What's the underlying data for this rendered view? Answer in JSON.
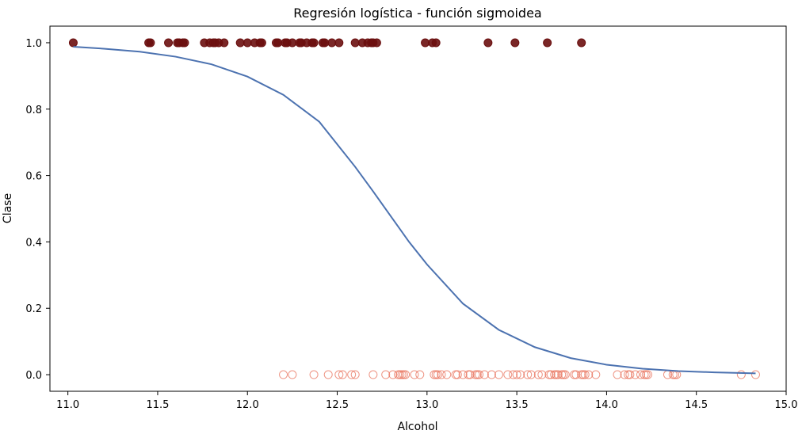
{
  "chart_data": {
    "type": "scatter",
    "title": "Regresión logística - función sigmoidea",
    "xlabel": "Alcohol",
    "ylabel": "Clase",
    "xlim": [
      10.9,
      15.0
    ],
    "ylim": [
      -0.05,
      1.05
    ],
    "xticks": [
      11.0,
      11.5,
      12.0,
      12.5,
      13.0,
      13.5,
      14.0,
      14.5,
      15.0
    ],
    "xtick_labels": [
      "11.0",
      "11.5",
      "12.0",
      "12.5",
      "13.0",
      "13.5",
      "14.0",
      "14.5",
      "15.0"
    ],
    "yticks": [
      0.0,
      0.2,
      0.4,
      0.6,
      0.8,
      1.0
    ],
    "ytick_labels": [
      "0.0",
      "0.2",
      "0.4",
      "0.6",
      "0.8",
      "1.0"
    ],
    "grid": false,
    "series": [
      {
        "kind": "scatter-filled",
        "color": "#6b0f0f",
        "y": 1,
        "x": [
          11.03,
          11.45,
          11.46,
          11.56,
          11.61,
          11.62,
          11.64,
          11.65,
          11.76,
          11.79,
          11.81,
          11.82,
          11.84,
          11.87,
          11.96,
          12.0,
          12.04,
          12.07,
          12.08,
          12.16,
          12.17,
          12.21,
          12.22,
          12.25,
          12.29,
          12.3,
          12.33,
          12.36,
          12.37,
          12.42,
          12.43,
          12.47,
          12.51,
          12.6,
          12.64,
          12.67,
          12.69,
          12.7,
          12.72,
          12.99,
          13.03,
          13.05,
          13.34,
          13.49,
          13.67,
          13.86
        ]
      },
      {
        "kind": "scatter-hollow",
        "color": "#e8705a",
        "y": 0,
        "x": [
          12.2,
          12.25,
          12.37,
          12.45,
          12.51,
          12.53,
          12.58,
          12.6,
          12.7,
          12.77,
          12.81,
          12.84,
          12.85,
          12.86,
          12.87,
          12.88,
          12.93,
          12.96,
          13.04,
          13.05,
          13.06,
          13.08,
          13.11,
          13.16,
          13.17,
          13.2,
          13.23,
          13.24,
          13.27,
          13.28,
          13.29,
          13.32,
          13.36,
          13.4,
          13.45,
          13.48,
          13.5,
          13.52,
          13.56,
          13.58,
          13.62,
          13.64,
          13.68,
          13.69,
          13.71,
          13.72,
          13.73,
          13.75,
          13.76,
          13.77,
          13.82,
          13.83,
          13.86,
          13.87,
          13.88,
          13.9,
          13.94,
          14.06,
          14.1,
          14.12,
          14.13,
          14.16,
          14.19,
          14.21,
          14.22,
          14.23,
          14.34,
          14.37,
          14.38,
          14.39,
          14.75,
          14.83
        ]
      },
      {
        "kind": "line",
        "color": "#4c72b0",
        "x": [
          11.03,
          11.2,
          11.4,
          11.6,
          11.8,
          12.0,
          12.2,
          12.4,
          12.6,
          12.7,
          12.8,
          12.9,
          13.0,
          13.2,
          13.4,
          13.6,
          13.8,
          14.0,
          14.2,
          14.4,
          14.6,
          14.83
        ],
        "y": [
          0.988,
          0.982,
          0.973,
          0.958,
          0.935,
          0.898,
          0.843,
          0.762,
          0.626,
          0.552,
          0.476,
          0.4,
          0.332,
          0.214,
          0.135,
          0.083,
          0.05,
          0.03,
          0.018,
          0.011,
          0.007,
          0.004
        ]
      }
    ]
  }
}
